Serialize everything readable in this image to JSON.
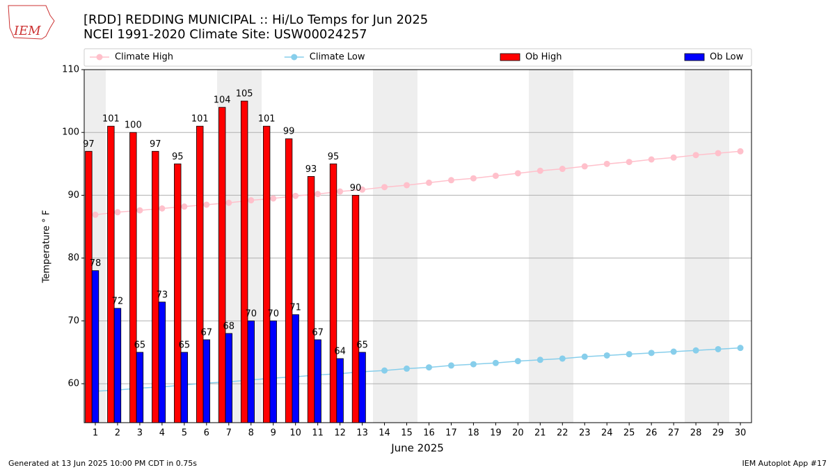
{
  "chart_data": {
    "type": "bar",
    "title": "[RDD] REDDING MUNICIPAL :: Hi/Lo Temps for Jun 2025",
    "subtitle": "NCEI 1991-2020 Climate Site: USW00024257",
    "logo_text": "IEM",
    "xlabel": "June 2025",
    "ylabel": "Temperature ° F",
    "footer_left": "Generated at 13 Jun 2025 10:00 PM CDT in 0.75s",
    "footer_right": "IEM Autoplot App #17",
    "x": [
      1,
      2,
      3,
      4,
      5,
      6,
      7,
      8,
      9,
      10,
      11,
      12,
      13,
      14,
      15,
      16,
      17,
      18,
      19,
      20,
      21,
      22,
      23,
      24,
      25,
      26,
      27,
      28,
      29,
      30
    ],
    "xlim": [
      0.5,
      30.5
    ],
    "xticks": [
      1,
      2,
      3,
      4,
      5,
      6,
      7,
      8,
      9,
      10,
      11,
      12,
      13,
      14,
      15,
      16,
      17,
      18,
      19,
      20,
      21,
      22,
      23,
      24,
      25,
      26,
      27,
      28,
      29,
      30
    ],
    "ylim": [
      53.8,
      110
    ],
    "yticks": [
      60,
      70,
      80,
      90,
      100,
      110
    ],
    "grid": true,
    "legend": "top",
    "series": [
      {
        "name": "Climate High",
        "style": "line",
        "color": "#ffc0cb",
        "values": [
          86.9,
          87.3,
          87.6,
          87.9,
          88.2,
          88.5,
          88.8,
          89.2,
          89.5,
          89.9,
          90.2,
          90.6,
          90.9,
          91.3,
          91.6,
          92.0,
          92.4,
          92.7,
          93.1,
          93.5,
          93.9,
          94.2,
          94.6,
          95.0,
          95.3,
          95.7,
          96.0,
          96.4,
          96.7,
          97.0
        ]
      },
      {
        "name": "Climate Low",
        "style": "line",
        "color": "#87ceeb",
        "values": [
          58.8,
          59.0,
          59.3,
          59.5,
          59.8,
          60.1,
          60.3,
          60.6,
          60.9,
          61.1,
          61.4,
          61.6,
          61.9,
          62.1,
          62.4,
          62.6,
          62.9,
          63.1,
          63.3,
          63.6,
          63.8,
          64.0,
          64.3,
          64.5,
          64.7,
          64.9,
          65.1,
          65.3,
          65.5,
          65.7
        ]
      },
      {
        "name": "Ob High",
        "style": "bar",
        "color": "#ff0000",
        "values": [
          97,
          101,
          100,
          97,
          95,
          101,
          104,
          105,
          101,
          99,
          93,
          95,
          90,
          null,
          null,
          null,
          null,
          null,
          null,
          null,
          null,
          null,
          null,
          null,
          null,
          null,
          null,
          null,
          null,
          null
        ]
      },
      {
        "name": "Ob Low",
        "style": "bar",
        "color": "#0000ff",
        "values": [
          78,
          72,
          65,
          73,
          65,
          67,
          68,
          70,
          70,
          71,
          67,
          64,
          65,
          null,
          null,
          null,
          null,
          null,
          null,
          null,
          null,
          null,
          null,
          null,
          null,
          null,
          null,
          null,
          null,
          null
        ]
      }
    ]
  }
}
